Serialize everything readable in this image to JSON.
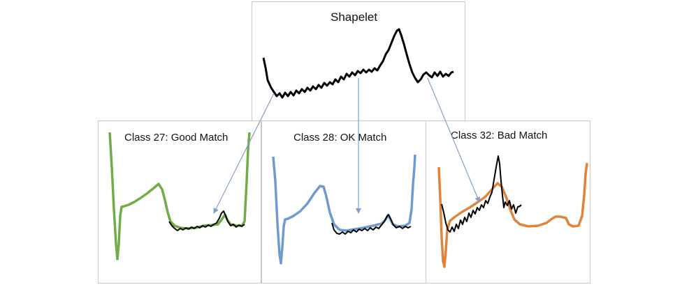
{
  "shapelet": {
    "title": "Shapelet"
  },
  "panels": [
    {
      "title": "Class 27: Good Match",
      "color": "#70ad47"
    },
    {
      "title": "Class 28: OK Match",
      "color": "#6e9bcf"
    },
    {
      "title": "Class 32: Bad Match",
      "color": "#e0843c"
    }
  ],
  "colors": {
    "shapelet": "#000000",
    "arrow": "#7f9fc8",
    "border": "#c8c8c8"
  }
}
